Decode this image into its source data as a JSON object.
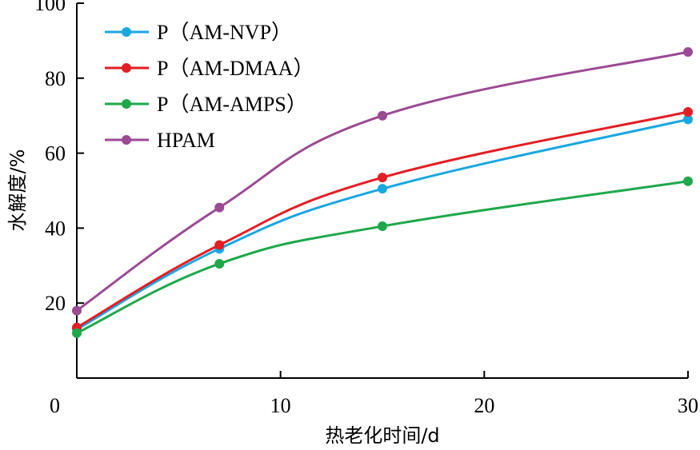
{
  "chart_data": {
    "type": "line",
    "title": "",
    "xlabel": "热老化时间/d",
    "ylabel": "水解度/%",
    "xlim": [
      0,
      30
    ],
    "ylim": [
      0,
      100
    ],
    "xticks": [
      0,
      10,
      20,
      30
    ],
    "yticks": [
      20,
      40,
      60,
      80,
      100
    ],
    "xtick_labels": [
      "0",
      "10",
      "20",
      "30"
    ],
    "ytick_labels": [
      "20",
      "40",
      "60",
      "80",
      "100"
    ],
    "x": [
      0,
      7,
      15,
      30
    ],
    "series": [
      {
        "name": "P（AM-NVP）",
        "color": "#1aa7e0",
        "values": [
          13.0,
          34.5,
          50.5,
          69.0
        ]
      },
      {
        "name": "P（AM-DMAA）",
        "color": "#e31e24",
        "values": [
          13.5,
          35.5,
          53.5,
          71.0
        ]
      },
      {
        "name": "P（AM-AMPS）",
        "color": "#1ea84b",
        "values": [
          12.0,
          30.5,
          40.5,
          52.5
        ]
      },
      {
        "name": "HPAM",
        "color": "#9b4a94",
        "values": [
          18.0,
          45.5,
          70.0,
          87.0
        ]
      }
    ],
    "legend": "top-left",
    "grid": false
  }
}
